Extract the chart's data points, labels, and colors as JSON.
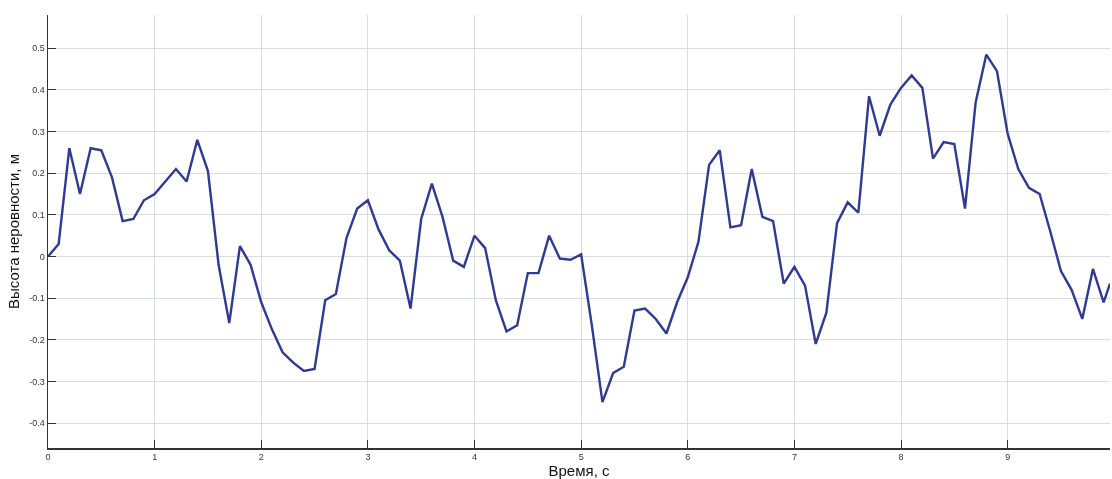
{
  "chart_data": {
    "type": "line",
    "xlabel": "Время, с",
    "ylabel": "Высота неровности, м",
    "series": [
      {
        "color": "#2e3a93",
        "x": [
          0,
          0.1,
          0.2,
          0.3,
          0.4,
          0.5,
          0.6,
          0.7,
          0.8,
          0.9,
          1.0,
          1.1,
          1.2,
          1.3,
          1.4,
          1.5,
          1.6,
          1.7,
          1.8,
          1.9,
          2.0,
          2.1,
          2.2,
          2.3,
          2.4,
          2.5,
          2.6,
          2.7,
          2.8,
          2.9,
          3.0,
          3.1,
          3.2,
          3.3,
          3.4,
          3.5,
          3.6,
          3.7,
          3.8,
          3.9,
          4.0,
          4.1,
          4.2,
          4.3,
          4.4,
          4.5,
          4.6,
          4.7,
          4.8,
          4.9,
          5.0,
          5.1,
          5.2,
          5.3,
          5.4,
          5.5,
          5.6,
          5.7,
          5.8,
          5.9,
          6.0,
          6.1,
          6.2,
          6.3,
          6.4,
          6.5,
          6.6,
          6.7,
          6.8,
          6.9,
          7.0,
          7.1,
          7.2,
          7.3,
          7.4,
          7.5,
          7.6,
          7.7,
          7.8,
          7.9,
          8.0,
          8.1,
          8.2,
          8.3,
          8.4,
          8.5,
          8.6,
          8.7,
          8.8,
          8.9,
          9.0,
          9.1,
          9.2,
          9.3,
          9.4,
          9.5,
          9.6,
          9.7,
          9.8,
          9.9,
          9.96
        ],
        "values": [
          0,
          0.03,
          0.26,
          0.15,
          0.26,
          0.255,
          0.19,
          0.085,
          0.09,
          0.135,
          0.15,
          0.18,
          0.21,
          0.18,
          0.28,
          0.205,
          -0.02,
          -0.16,
          0.025,
          -0.02,
          -0.11,
          -0.175,
          -0.23,
          -0.255,
          -0.275,
          -0.27,
          -0.105,
          -0.09,
          0.045,
          0.115,
          0.135,
          0.065,
          0.015,
          -0.01,
          -0.125,
          0.09,
          0.175,
          0.095,
          -0.01,
          -0.025,
          0.05,
          0.02,
          -0.105,
          -0.18,
          -0.165,
          -0.04,
          -0.04,
          0.05,
          -0.005,
          -0.008,
          0.005,
          -0.165,
          -0.35,
          -0.28,
          -0.265,
          -0.13,
          -0.125,
          -0.15,
          -0.185,
          -0.11,
          -0.05,
          0.035,
          0.22,
          0.255,
          0.07,
          0.075,
          0.21,
          0.095,
          0.085,
          -0.065,
          -0.025,
          -0.07,
          -0.21,
          -0.135,
          0.08,
          0.13,
          0.105,
          0.385,
          0.29,
          0.365,
          0.405,
          0.435,
          0.405,
          0.235,
          0.275,
          0.27,
          0.115,
          0.37,
          0.485,
          0.445,
          0.295,
          0.21,
          0.165,
          0.15,
          0.06,
          -0.035,
          -0.08,
          -0.15,
          -0.03,
          -0.11,
          -0.065
        ]
      }
    ],
    "xlim": [
      0,
      9.96
    ],
    "xticks": [
      0,
      1,
      2,
      3,
      4,
      5,
      6,
      7,
      8,
      9
    ],
    "ylim": [
      -0.46,
      0.58
    ],
    "yticks": [
      -0.4,
      -0.3,
      -0.2,
      -0.1,
      0,
      0.1,
      0.2,
      0.3,
      0.4,
      0.5
    ],
    "grid": true,
    "marker": "none",
    "line_style": "solid"
  }
}
